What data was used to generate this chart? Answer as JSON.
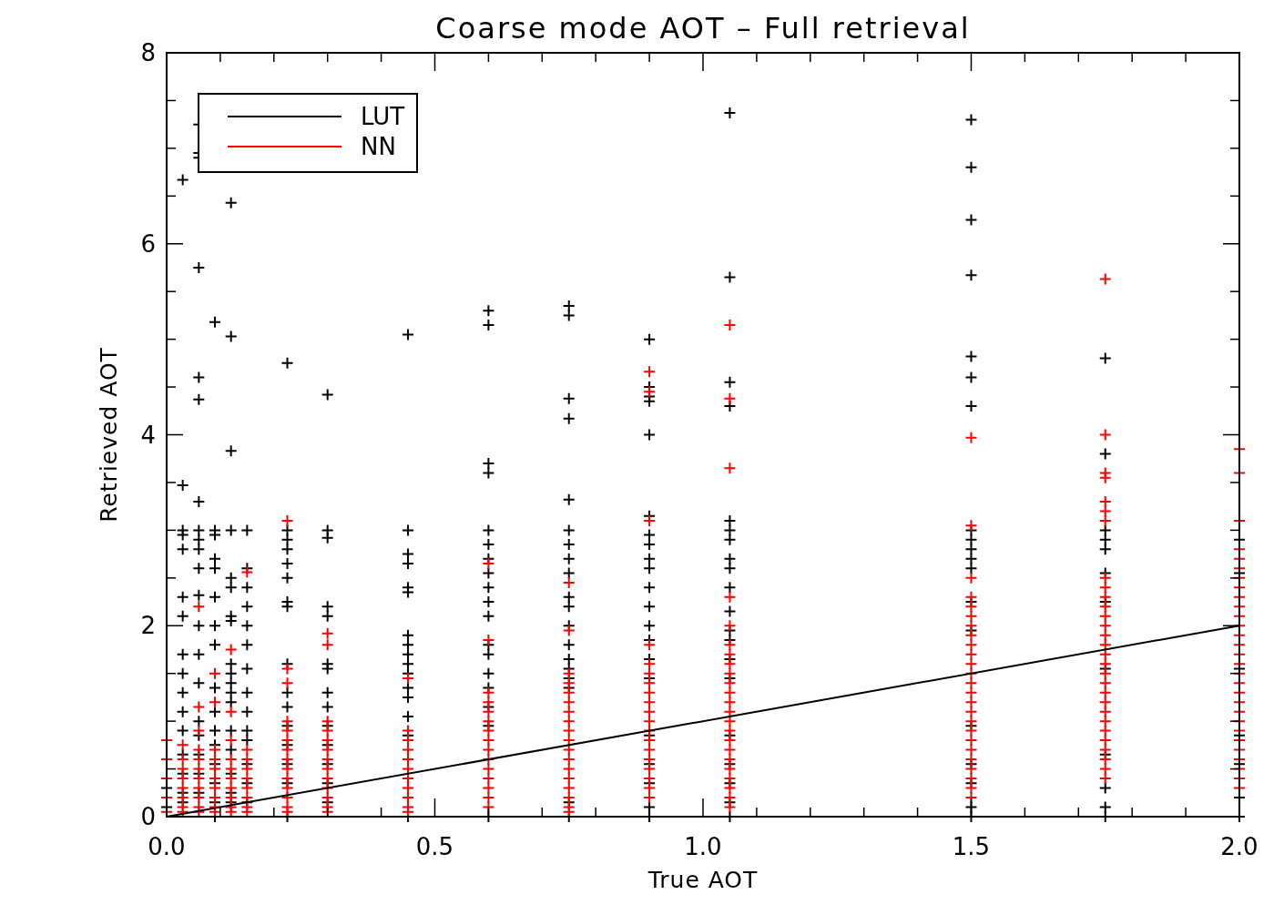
{
  "chart_data": {
    "type": "scatter",
    "title": "Coarse mode AOT – Full retrieval",
    "xlabel": "True AOT",
    "ylabel": "Retrieved AOT",
    "xlim": [
      0,
      2
    ],
    "ylim": [
      0,
      8
    ],
    "xticks": [
      {
        "value": 0,
        "label": "0.0"
      },
      {
        "value": 0.1,
        "label": null
      },
      {
        "value": 0.2,
        "label": null
      },
      {
        "value": 0.3,
        "label": null
      },
      {
        "value": 0.4,
        "label": null
      },
      {
        "value": 0.5,
        "label": "0.5"
      },
      {
        "value": 0.6,
        "label": null
      },
      {
        "value": 0.7,
        "label": null
      },
      {
        "value": 0.8,
        "label": null
      },
      {
        "value": 0.9,
        "label": null
      },
      {
        "value": 1,
        "label": "1.0"
      },
      {
        "value": 1.1,
        "label": null
      },
      {
        "value": 1.2,
        "label": null
      },
      {
        "value": 1.3,
        "label": null
      },
      {
        "value": 1.4,
        "label": null
      },
      {
        "value": 1.5,
        "label": "1.5"
      },
      {
        "value": 1.6,
        "label": null
      },
      {
        "value": 1.7,
        "label": null
      },
      {
        "value": 1.8,
        "label": null
      },
      {
        "value": 1.9,
        "label": null
      },
      {
        "value": 2,
        "label": "2.0"
      }
    ],
    "yticks": [
      0,
      {
        "value": 0.5,
        "label": null
      },
      {
        "value": 1,
        "label": null
      },
      {
        "value": 1.5,
        "label": null
      },
      2,
      {
        "value": 2.5,
        "label": null
      },
      {
        "value": 3,
        "label": null
      },
      {
        "value": 3.5,
        "label": null
      },
      4,
      {
        "value": 4.5,
        "label": null
      },
      {
        "value": 5,
        "label": null
      },
      {
        "value": 5.5,
        "label": null
      },
      6,
      {
        "value": 6.5,
        "label": null
      },
      {
        "value": 7,
        "label": null
      },
      {
        "value": 7.5,
        "label": null
      },
      8
    ],
    "grid": false,
    "legend": "top left",
    "marker": "cross",
    "series": [
      {
        "name": "LUT",
        "color": "#000000",
        "x": [
          0,
          0,
          0.03,
          0.03,
          0.03,
          0.03,
          0.03,
          0.03,
          0.03,
          0.03,
          0.03,
          0.03,
          0.03,
          0.03,
          0.03,
          0.03,
          0.03,
          0.03,
          0.06,
          0.06,
          0.06,
          0.06,
          0.06,
          0.06,
          0.06,
          0.06,
          0.06,
          0.06,
          0.06,
          0.06,
          0.06,
          0.06,
          0.06,
          0.06,
          0.06,
          0.06,
          0.06,
          0.06,
          0.09,
          0.09,
          0.09,
          0.09,
          0.09,
          0.09,
          0.09,
          0.09,
          0.09,
          0.09,
          0.09,
          0.09,
          0.09,
          0.09,
          0.09,
          0.09,
          0.12,
          0.12,
          0.12,
          0.12,
          0.12,
          0.12,
          0.12,
          0.12,
          0.12,
          0.12,
          0.12,
          0.12,
          0.12,
          0.12,
          0.12,
          0.12,
          0.12,
          0.12,
          0.15,
          0.15,
          0.15,
          0.15,
          0.15,
          0.15,
          0.15,
          0.15,
          0.15,
          0.15,
          0.15,
          0.15,
          0.15,
          0.15,
          0.225,
          0.225,
          0.225,
          0.225,
          0.225,
          0.225,
          0.225,
          0.225,
          0.225,
          0.225,
          0.225,
          0.225,
          0.225,
          0.225,
          0.225,
          0.225,
          0.3,
          0.3,
          0.3,
          0.3,
          0.3,
          0.3,
          0.3,
          0.3,
          0.3,
          0.3,
          0.3,
          0.3,
          0.3,
          0.3,
          0.45,
          0.45,
          0.45,
          0.45,
          0.45,
          0.45,
          0.45,
          0.45,
          0.45,
          0.45,
          0.45,
          0.45,
          0.45,
          0.45,
          0.45,
          0.45,
          0.6,
          0.6,
          0.6,
          0.6,
          0.6,
          0.6,
          0.6,
          0.6,
          0.6,
          0.6,
          0.6,
          0.6,
          0.6,
          0.6,
          0.6,
          0.6,
          0.6,
          0.6,
          0.75,
          0.75,
          0.75,
          0.75,
          0.75,
          0.75,
          0.75,
          0.75,
          0.75,
          0.75,
          0.75,
          0.75,
          0.75,
          0.75,
          0.75,
          0.75,
          0.75,
          0.75,
          0.75,
          0.9,
          0.9,
          0.9,
          0.9,
          0.9,
          0.9,
          0.9,
          0.9,
          0.9,
          0.9,
          0.9,
          0.9,
          0.9,
          0.9,
          0.9,
          0.9,
          0.9,
          0.9,
          0.9,
          0.9,
          0.9,
          1.05,
          1.05,
          1.05,
          1.05,
          1.05,
          1.05,
          1.05,
          1.05,
          1.05,
          1.05,
          1.05,
          1.05,
          1.05,
          1.05,
          1.05,
          1.05,
          1.05,
          1.05,
          1.05,
          1.05,
          1.5,
          1.5,
          1.5,
          1.5,
          1.5,
          1.5,
          1.5,
          1.5,
          1.5,
          1.5,
          1.5,
          1.5,
          1.5,
          1.5,
          1.5,
          1.5,
          1.5,
          1.5,
          1.5,
          1.75,
          1.75,
          1.75,
          1.75,
          1.75,
          1.75,
          1.75,
          1.75,
          1.75,
          1.75,
          1.75,
          1.75,
          2,
          2,
          2,
          2,
          2,
          2,
          2
        ],
        "values": [
          0.1,
          0.3,
          6.67,
          3.47,
          3.0,
          2.95,
          2.8,
          2.3,
          2.1,
          1.7,
          1.5,
          1.3,
          1.1,
          0.9,
          0.65,
          0.45,
          0.25,
          0.15,
          7.25,
          6.95,
          6.9,
          5.75,
          4.6,
          4.37,
          3.3,
          3.0,
          2.9,
          2.8,
          2.6,
          2.32,
          2.0,
          1.7,
          1.4,
          1.0,
          0.85,
          0.65,
          0.45,
          0.25,
          5.18,
          3.0,
          2.95,
          2.7,
          2.6,
          2.3,
          2.0,
          1.8,
          1.35,
          1.1,
          0.9,
          0.75,
          0.55,
          0.35,
          0.15,
          0.0,
          6.43,
          5.03,
          3.83,
          3.0,
          2.5,
          2.4,
          2.1,
          2.05,
          1.5,
          1.3,
          0.9,
          0.7,
          0.45,
          0.25,
          0.15,
          1.2,
          1.4,
          1.6,
          3.0,
          2.6,
          2.4,
          2.2,
          2.0,
          1.8,
          1.55,
          1.3,
          1.1,
          0.9,
          0.8,
          0.55,
          0.35,
          0.15,
          4.75,
          3.0,
          2.9,
          2.8,
          2.65,
          2.5,
          2.25,
          2.2,
          1.6,
          1.3,
          1.15,
          0.95,
          0.75,
          0.55,
          0.35,
          0.0,
          4.42,
          3.0,
          2.92,
          2.2,
          2.1,
          1.6,
          1.55,
          1.15,
          0.95,
          0.75,
          0.55,
          0.35,
          0.15,
          1.3,
          5.05,
          3.0,
          2.75,
          2.65,
          2.4,
          2.35,
          1.9,
          1.8,
          1.7,
          1.6,
          1.5,
          1.35,
          1.25,
          1.05,
          0.85,
          0.0,
          5.3,
          5.15,
          3.7,
          3.6,
          3.0,
          2.85,
          2.7,
          2.55,
          2.4,
          2.25,
          2.1,
          1.8,
          1.7,
          1.5,
          1.35,
          1.15,
          0.95,
          0.0,
          5.35,
          5.25,
          4.38,
          4.17,
          3.32,
          3.0,
          2.85,
          2.7,
          2.55,
          2.3,
          2.2,
          2.0,
          1.8,
          1.65,
          1.55,
          1.45,
          1.35,
          0.15,
          0.0,
          5.0,
          4.5,
          4.4,
          4.35,
          4.0,
          3.15,
          2.95,
          2.85,
          2.7,
          2.6,
          2.4,
          2.2,
          2.0,
          1.85,
          1.65,
          1.45,
          0.85,
          0.55,
          0.35,
          0.1,
          0.0,
          7.37,
          5.65,
          4.55,
          4.3,
          3.1,
          3.0,
          2.9,
          2.7,
          2.6,
          2.4,
          2.15,
          1.95,
          1.85,
          1.65,
          1.45,
          0.85,
          0.55,
          0.35,
          0.15,
          0.0,
          7.3,
          6.8,
          6.25,
          5.67,
          4.82,
          4.6,
          4.3,
          3.0,
          2.9,
          2.8,
          2.7,
          2.6,
          2.25,
          1.95,
          0.95,
          0.55,
          0.35,
          0.1,
          0.0,
          4.8,
          3.8,
          3.0,
          2.9,
          2.8,
          2.55,
          2.25,
          1.55,
          0.65,
          0.3,
          0.1,
          0.0,
          2.9,
          2.55,
          1.55,
          0.85,
          0.55,
          0.2,
          0.0
        ]
      },
      {
        "name": "NN",
        "color": "#ff0000",
        "x": [
          0,
          0,
          0,
          0,
          0,
          0.03,
          0.03,
          0.03,
          0.03,
          0.03,
          0.03,
          0.03,
          0.03,
          0.06,
          0.06,
          0.06,
          0.06,
          0.06,
          0.06,
          0.06,
          0.06,
          0.06,
          0.06,
          0.06,
          0.09,
          0.09,
          0.09,
          0.09,
          0.09,
          0.09,
          0.09,
          0.09,
          0.09,
          0.09,
          0.12,
          0.12,
          0.12,
          0.12,
          0.12,
          0.12,
          0.12,
          0.12,
          0.12,
          0.12,
          0.15,
          0.15,
          0.15,
          0.15,
          0.15,
          0.15,
          0.15,
          0.15,
          0.15,
          0.225,
          0.225,
          0.225,
          0.225,
          0.225,
          0.225,
          0.225,
          0.225,
          0.225,
          0.225,
          0.225,
          0.225,
          0.225,
          0.225,
          0.3,
          0.3,
          0.3,
          0.3,
          0.3,
          0.3,
          0.3,
          0.3,
          0.3,
          0.3,
          0.3,
          0.3,
          0.3,
          0.45,
          0.45,
          0.45,
          0.45,
          0.45,
          0.45,
          0.45,
          0.45,
          0.45,
          0.45,
          0.45,
          0.6,
          0.6,
          0.6,
          0.6,
          0.6,
          0.6,
          0.6,
          0.6,
          0.6,
          0.6,
          0.6,
          0.6,
          0.6,
          0.6,
          0.6,
          0.75,
          0.75,
          0.75,
          0.75,
          0.75,
          0.75,
          0.75,
          0.75,
          0.75,
          0.75,
          0.75,
          0.75,
          0.75,
          0.75,
          0.75,
          0.75,
          0.75,
          0.75,
          0.9,
          0.9,
          0.9,
          0.9,
          0.9,
          0.9,
          0.9,
          0.9,
          0.9,
          0.9,
          0.9,
          0.9,
          0.9,
          0.9,
          0.9,
          0.9,
          0.9,
          0.9,
          0.9,
          1.05,
          1.05,
          1.05,
          1.05,
          1.05,
          1.05,
          1.05,
          1.05,
          1.05,
          1.05,
          1.05,
          1.05,
          1.05,
          1.05,
          1.05,
          1.05,
          1.05,
          1.05,
          1.05,
          1.05,
          1.05,
          1.05,
          1.05,
          1.5,
          1.5,
          1.5,
          1.5,
          1.5,
          1.5,
          1.5,
          1.5,
          1.5,
          1.5,
          1.5,
          1.5,
          1.5,
          1.5,
          1.5,
          1.5,
          1.5,
          1.5,
          1.5,
          1.5,
          1.5,
          1.5,
          1.5,
          1.5,
          1.5,
          1.75,
          1.75,
          1.75,
          1.75,
          1.75,
          1.75,
          1.75,
          1.75,
          1.75,
          1.75,
          1.75,
          1.75,
          1.75,
          1.75,
          1.75,
          1.75,
          1.75,
          1.75,
          1.75,
          1.75,
          1.75,
          1.75,
          1.75,
          1.75,
          1.75,
          1.75,
          1.75,
          1.75,
          1.75,
          2,
          2,
          2,
          2,
          2,
          2,
          2,
          2,
          2,
          2,
          2,
          2,
          2,
          2,
          2,
          2,
          2,
          2,
          2,
          2,
          2,
          2,
          2,
          2,
          2,
          2,
          2,
          2,
          2
        ],
        "values": [
          0.8,
          0.6,
          0.4,
          0.2,
          0.05,
          0.75,
          0.6,
          0.5,
          0.4,
          0.3,
          0.2,
          0.1,
          0.05,
          2.2,
          1.15,
          0.9,
          0.7,
          0.6,
          0.5,
          0.4,
          0.3,
          0.2,
          0.1,
          0.05,
          1.5,
          1.2,
          0.7,
          0.6,
          0.5,
          0.4,
          0.3,
          0.2,
          0.1,
          0.05,
          1.75,
          1.1,
          0.8,
          0.6,
          0.5,
          0.4,
          0.3,
          0.2,
          0.1,
          0.05,
          2.56,
          0.7,
          0.6,
          0.5,
          0.4,
          0.3,
          0.2,
          0.1,
          0.05,
          3.1,
          1.55,
          1.4,
          1.0,
          0.9,
          0.8,
          0.7,
          0.6,
          0.5,
          0.4,
          0.3,
          0.2,
          0.1,
          0.05,
          1.92,
          1.8,
          1.0,
          0.9,
          0.8,
          0.7,
          0.6,
          0.5,
          0.4,
          0.3,
          0.2,
          0.1,
          0.05,
          1.45,
          0.9,
          0.8,
          0.7,
          0.6,
          0.5,
          0.4,
          0.3,
          0.2,
          0.1,
          0.05,
          2.65,
          1.85,
          1.3,
          1.2,
          1.1,
          1.0,
          0.9,
          0.8,
          0.7,
          0.6,
          0.5,
          0.4,
          0.3,
          0.2,
          0.1,
          2.45,
          1.95,
          1.5,
          1.4,
          1.3,
          1.2,
          1.1,
          1.0,
          0.9,
          0.8,
          0.7,
          0.6,
          0.5,
          0.4,
          0.3,
          0.2,
          0.1,
          0.05,
          4.66,
          4.45,
          3.1,
          1.8,
          1.6,
          1.5,
          1.4,
          1.3,
          1.2,
          1.1,
          1.0,
          0.9,
          0.8,
          0.7,
          0.6,
          0.5,
          0.4,
          0.3,
          0.2,
          5.15,
          4.38,
          3.65,
          2.3,
          2.0,
          1.8,
          1.7,
          1.6,
          1.5,
          1.4,
          1.3,
          1.2,
          1.1,
          1.0,
          0.9,
          0.8,
          0.7,
          0.6,
          0.5,
          0.4,
          0.3,
          0.2,
          0.1,
          3.97,
          3.05,
          2.5,
          2.3,
          2.2,
          2.1,
          2.0,
          1.9,
          1.8,
          1.7,
          1.6,
          1.5,
          1.4,
          1.3,
          1.2,
          1.1,
          1.0,
          0.9,
          0.8,
          0.7,
          0.6,
          0.5,
          0.4,
          0.3,
          0.2,
          5.63,
          4.0,
          3.6,
          3.55,
          3.3,
          3.2,
          3.1,
          2.5,
          2.4,
          2.3,
          2.2,
          2.1,
          2.0,
          1.9,
          1.8,
          1.7,
          1.6,
          1.5,
          1.4,
          1.3,
          1.2,
          1.1,
          1.0,
          0.9,
          0.8,
          0.7,
          0.6,
          0.5,
          0.4,
          3.85,
          3.6,
          3.1,
          2.8,
          2.7,
          2.6,
          2.5,
          2.4,
          2.3,
          2.2,
          2.1,
          2.0,
          1.9,
          1.8,
          1.7,
          1.6,
          1.5,
          1.4,
          1.3,
          1.2,
          1.1,
          1.0,
          0.9,
          0.8,
          0.7,
          0.6,
          0.5,
          0.4,
          0.3
        ]
      },
      {
        "type": "line",
        "color": "#000000",
        "marker": "none",
        "x": [
          0,
          2
        ],
        "values": [
          0,
          2
        ]
      }
    ]
  }
}
